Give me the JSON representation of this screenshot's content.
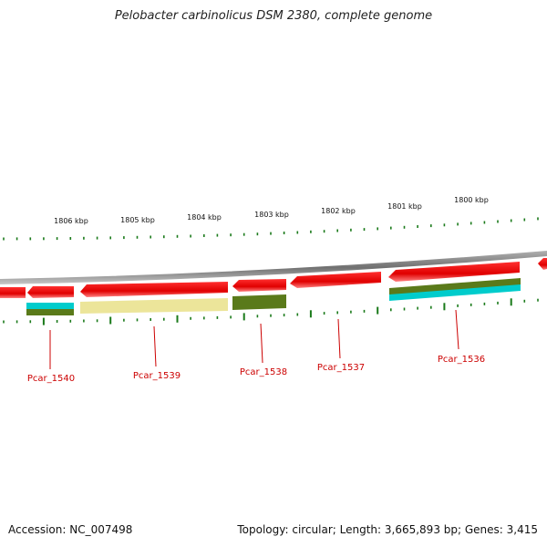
{
  "title": "Pelobacter carbinolicus DSM 2380, complete genome",
  "scale_labels": [
    "1806 kbp",
    "1805 kbp",
    "1804 kbp",
    "1803 kbp",
    "1802 kbp",
    "1801 kbp",
    "1800 kbp"
  ],
  "genes": [
    "Pcar_1540",
    "Pcar_1539",
    "Pcar_1538",
    "Pcar_1537",
    "Pcar_1536"
  ],
  "footer": {
    "accession": "Accession: NC_007498",
    "summary": "Topology: circular; Length: 3,665,893 bp; Genes: 3,415"
  },
  "colors": {
    "cds": "#ee0000",
    "backbone": "#808080",
    "tick": "#1a7a1a",
    "label": "#cc0000",
    "cyan": "#00cccc",
    "olive": "#5a7a1a",
    "khaki": "#ece59a"
  }
}
